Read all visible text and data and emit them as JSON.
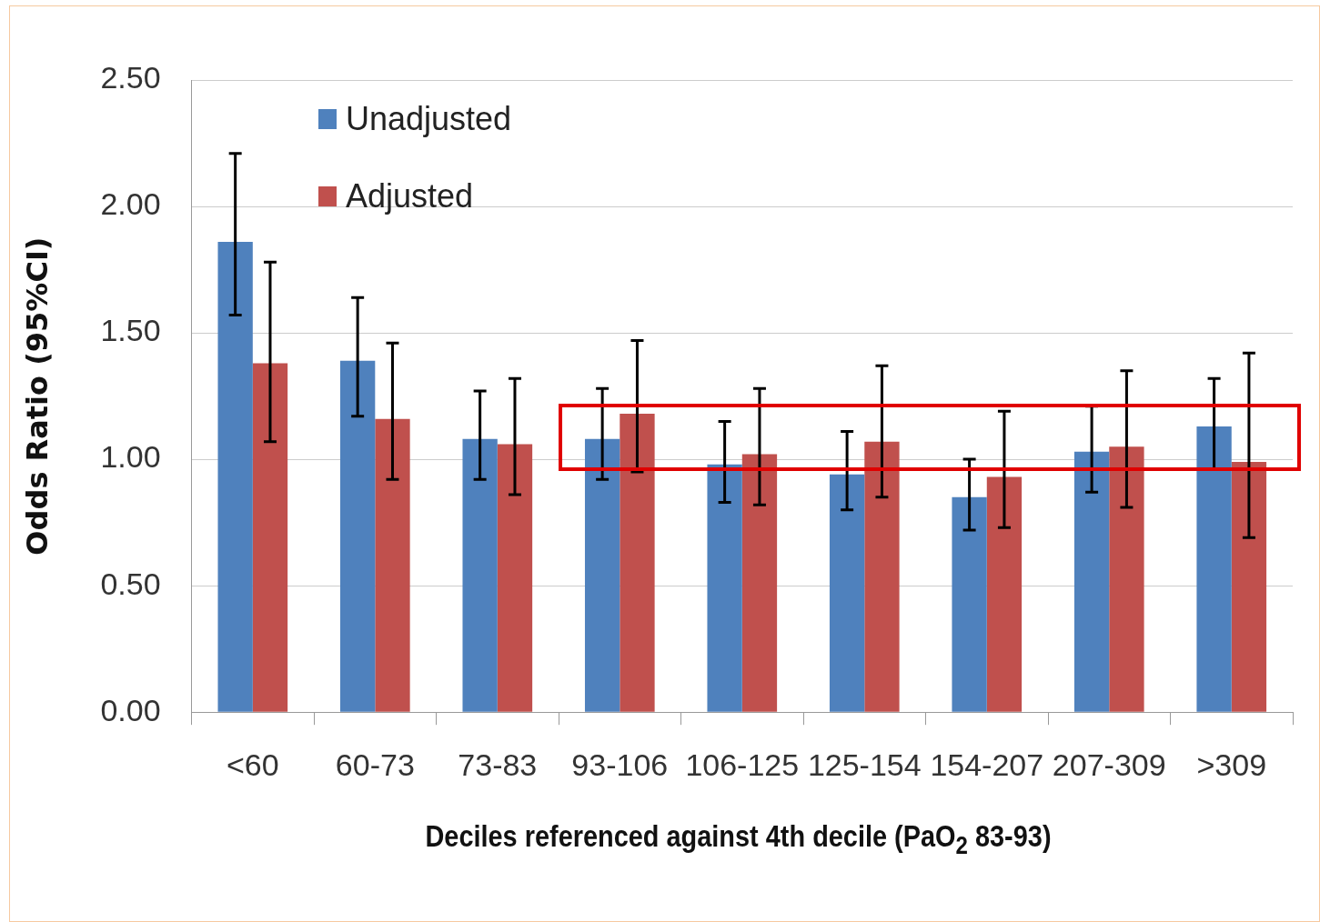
{
  "chart_data": {
    "type": "bar",
    "xlabel": "Deciles referenced against 4th decile (PaO$_{2}$ 83-93)",
    "ylabel": "Odds Ratio (95%CI)",
    "categories": [
      "<60",
      "60-73",
      "73-83",
      "93-106",
      "106-125",
      "125-154",
      "154-207",
      "207-309",
      ">309"
    ],
    "series": [
      {
        "name": "Unadjusted",
        "color": "#4f81bd",
        "values": [
          1.86,
          1.39,
          1.08,
          1.08,
          0.98,
          0.94,
          0.85,
          1.03,
          1.13
        ],
        "errors": [
          [
            1.57,
            2.21
          ],
          [
            1.17,
            1.64
          ],
          [
            0.92,
            1.27
          ],
          [
            0.92,
            1.28
          ],
          [
            0.83,
            1.15
          ],
          [
            0.8,
            1.11
          ],
          [
            0.72,
            1.0
          ],
          [
            0.87,
            1.21
          ],
          [
            0.96,
            1.32
          ]
        ]
      },
      {
        "name": "Adjusted",
        "color": "#c0504d",
        "values": [
          1.38,
          1.16,
          1.06,
          1.18,
          1.02,
          1.07,
          0.93,
          1.05,
          0.99
        ],
        "errors": [
          [
            1.07,
            1.78
          ],
          [
            0.92,
            1.46
          ],
          [
            0.86,
            1.32
          ],
          [
            0.95,
            1.47
          ],
          [
            0.82,
            1.28
          ],
          [
            0.85,
            1.37
          ],
          [
            0.73,
            1.19
          ],
          [
            0.81,
            1.35
          ],
          [
            0.69,
            1.42
          ]
        ]
      }
    ],
    "ylim": [
      0,
      2.5
    ],
    "yticks": [
      {
        "value": 0,
        "label": "0.00"
      },
      {
        "value": 0.5,
        "label": "0.50"
      },
      {
        "value": 1,
        "label": "1.00"
      },
      {
        "value": 1.5,
        "label": "1.50"
      },
      {
        "value": 2,
        "label": "2.00"
      },
      {
        "value": 2.5,
        "label": "2.50"
      }
    ],
    "grid": "y",
    "legend": "top left"
  }
}
